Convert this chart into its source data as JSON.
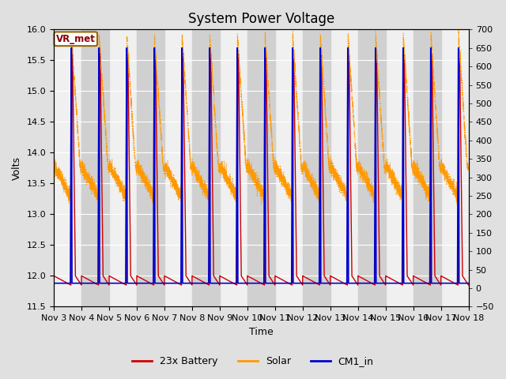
{
  "title": "System Power Voltage",
  "xlabel": "Time",
  "ylabel": "Volts",
  "ylim_left": [
    11.5,
    16.0
  ],
  "ylim_right": [
    -50,
    700
  ],
  "yticks_left": [
    11.5,
    12.0,
    12.5,
    13.0,
    13.5,
    14.0,
    14.5,
    15.0,
    15.5,
    16.0
  ],
  "yticks_right": [
    -50,
    0,
    50,
    100,
    150,
    200,
    250,
    300,
    350,
    400,
    450,
    500,
    550,
    600,
    650,
    700
  ],
  "xtick_labels": [
    "Nov 3",
    "Nov 4",
    "Nov 5",
    "Nov 6",
    "Nov 7",
    "Nov 8",
    "Nov 9",
    "Nov 10",
    "Nov 11",
    "Nov 12",
    "Nov 13",
    "Nov 14",
    "Nov 15",
    "Nov 16",
    "Nov 17",
    "Nov 18"
  ],
  "xtick_positions": [
    3,
    4,
    5,
    6,
    7,
    8,
    9,
    10,
    11,
    12,
    13,
    14,
    15,
    16,
    17,
    18
  ],
  "xlim": [
    3,
    18
  ],
  "annotation_text": "VR_met",
  "legend_entries": [
    "23x Battery",
    "Solar",
    "CM1_in"
  ],
  "battery_color": "#cc0000",
  "solar_color": "#ff9900",
  "cm1_color": "#0000cc",
  "bg_color": "#e0e0e0",
  "plot_bg_color": "#f0f0f0",
  "band_color": "#d0d0d0",
  "title_fontsize": 12,
  "label_fontsize": 9,
  "tick_fontsize": 8
}
